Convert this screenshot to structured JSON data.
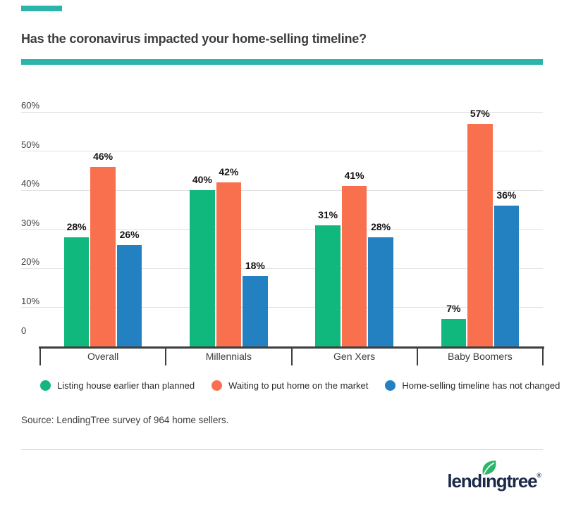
{
  "accent_color": "#2BB4AA",
  "title": "Has the coronavirus impacted your home-selling timeline?",
  "chart_data": {
    "type": "bar",
    "title": "Has the coronavirus impacted your home-selling timeline?",
    "categories": [
      "Overall",
      "Millennials",
      "Gen Xers",
      "Baby Boomers"
    ],
    "series": [
      {
        "name": "Listing house earlier than planned",
        "color": "#10B87E",
        "values": [
          28,
          40,
          31,
          7
        ]
      },
      {
        "name": "Waiting to put home on the market",
        "color": "#F9704F",
        "values": [
          46,
          42,
          41,
          57
        ]
      },
      {
        "name": "Home-selling timeline has not changed",
        "color": "#2381C1",
        "values": [
          26,
          18,
          28,
          36
        ]
      }
    ],
    "y_ticks": [
      {
        "value": 60,
        "label": "60%"
      },
      {
        "value": 50,
        "label": "50%"
      },
      {
        "value": 40,
        "label": "40%"
      },
      {
        "value": 30,
        "label": "30%"
      },
      {
        "value": 20,
        "label": "20%"
      },
      {
        "value": 10,
        "label": "10%"
      },
      {
        "value": 0,
        "label": "0"
      }
    ],
    "ylim": [
      0,
      60
    ],
    "xlabel": "",
    "ylabel": "",
    "grid": true,
    "legend_position": "bottom",
    "data_label_format": "{v}%"
  },
  "source": "Source: LendingTree survey of 964 home sellers.",
  "logo": {
    "text": "lendingtree",
    "registered": "®"
  }
}
